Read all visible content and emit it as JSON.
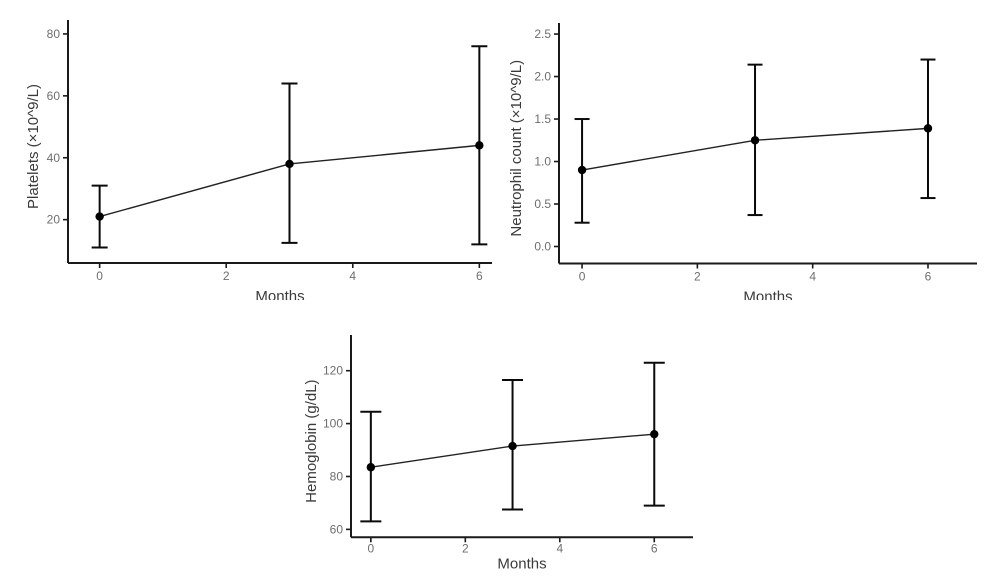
{
  "figure": {
    "description": "Three point-and-error-bar line plots of blood counts over months"
  },
  "colors": {
    "background": "#ffffff",
    "point": "#000000",
    "error_bar": "#0a0a0a",
    "trend_line": "#222222",
    "axis_line": "#1a1a1a",
    "tick_label": "#6e6e6e",
    "axis_title": "#3a3a3a"
  },
  "chart_data": [
    {
      "id": "platelets",
      "type": "line",
      "title": "",
      "xlabel": "Months",
      "ylabel": "Platelets (×10^9/L)",
      "x": [
        0,
        3,
        6
      ],
      "series": [
        {
          "name": "mean",
          "values": [
            21,
            38,
            44
          ],
          "error_low": [
            11,
            12.5,
            12
          ],
          "error_high": [
            31,
            64,
            76
          ]
        }
      ],
      "xticks": [
        0,
        2,
        4,
        6
      ],
      "xtick_labels": [
        "0",
        "2",
        "4",
        "6"
      ],
      "yticks": [
        20,
        40,
        60,
        80
      ],
      "ytick_labels": [
        "20",
        "40",
        "60",
        "80"
      ],
      "xlim": [
        -0.5,
        6.2
      ],
      "ylim": [
        6,
        84.5
      ],
      "grid": false,
      "legend": "none"
    },
    {
      "id": "neutrophil-count",
      "type": "line",
      "title": "",
      "xlabel": "Months",
      "ylabel": "Neutrophil count (×10^9/L)",
      "x": [
        0,
        3,
        6
      ],
      "series": [
        {
          "name": "mean",
          "values": [
            0.9,
            1.25,
            1.39
          ],
          "error_low": [
            0.28,
            0.37,
            0.57
          ],
          "error_high": [
            1.5,
            2.14,
            2.2
          ]
        }
      ],
      "xticks": [
        0,
        2,
        4,
        6
      ],
      "xtick_labels": [
        "0",
        "2",
        "4",
        "6"
      ],
      "yticks": [
        0,
        0.5,
        1,
        1.5,
        2,
        2.5
      ],
      "ytick_labels": [
        "0.0",
        "0.5",
        "1.0",
        "1.5",
        "2.0",
        "2.5"
      ],
      "xlim": [
        -0.4,
        6.85
      ],
      "ylim": [
        -0.2,
        2.63
      ],
      "grid": false,
      "legend": "none"
    },
    {
      "id": "hemoglobin",
      "type": "line",
      "title": "",
      "xlabel": "Months",
      "ylabel": "Hemoglobin (g/dL)",
      "x": [
        0,
        3,
        6
      ],
      "series": [
        {
          "name": "mean",
          "values": [
            83.5,
            91.5,
            96
          ],
          "error_low": [
            63,
            67.5,
            69
          ],
          "error_high": [
            104.5,
            116.5,
            123
          ]
        }
      ],
      "xticks": [
        0,
        2,
        4,
        6
      ],
      "xtick_labels": [
        "0",
        "2",
        "4",
        "6"
      ],
      "yticks": [
        60,
        80,
        100,
        120
      ],
      "ytick_labels": [
        "60",
        "80",
        "100",
        "120"
      ],
      "xlim": [
        -0.42,
        6.82
      ],
      "ylim": [
        57,
        133.5
      ],
      "grid": false,
      "legend": "none"
    }
  ]
}
